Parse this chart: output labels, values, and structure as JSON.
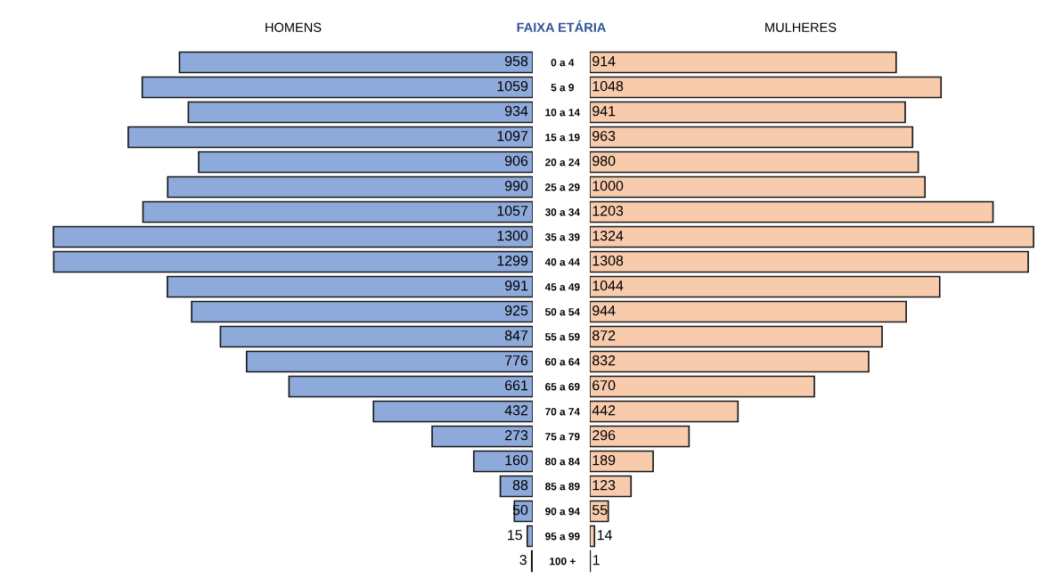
{
  "chart_data": [
    {
      "type": "bar",
      "orientation": "horizontal",
      "title": "HOMENS",
      "ylabel": "FAIXA ETÁRIA",
      "data_labels": true,
      "tick_labels": "y",
      "categories": [
        "0 a 4",
        "5 a 9",
        "10 a 14",
        "15 a 19",
        "20 a 24",
        "25 a 29",
        "30 a 34",
        "35 a 39",
        "40 a 44",
        "45 a 49",
        "50 a 54",
        "55 a 59",
        "60 a 64",
        "65 a 69",
        "70 a 74",
        "75 a 79",
        "80 a 84",
        "85 a 89",
        "90 a 94",
        "95 a 99",
        "100 +"
      ],
      "color": "#8eaadb",
      "values": [
        958,
        1059,
        934,
        1097,
        906,
        990,
        1057,
        1300,
        1299,
        991,
        925,
        847,
        776,
        661,
        432,
        273,
        160,
        88,
        50,
        15,
        3
      ]
    },
    {
      "type": "bar",
      "orientation": "horizontal",
      "title": "MULHERES",
      "data_labels": true,
      "tick_labels": false,
      "categories": [
        null,
        null,
        null,
        null,
        null,
        null,
        null,
        null,
        null,
        null,
        null,
        null,
        null,
        null,
        null,
        null,
        null,
        null,
        null,
        null,
        null
      ],
      "color": "#f8cbad",
      "values": [
        914,
        1048,
        941,
        963,
        980,
        1000,
        1203,
        1324,
        1308,
        1044,
        944,
        872,
        832,
        670,
        442,
        296,
        189,
        123,
        55,
        14,
        1
      ]
    }
  ]
}
